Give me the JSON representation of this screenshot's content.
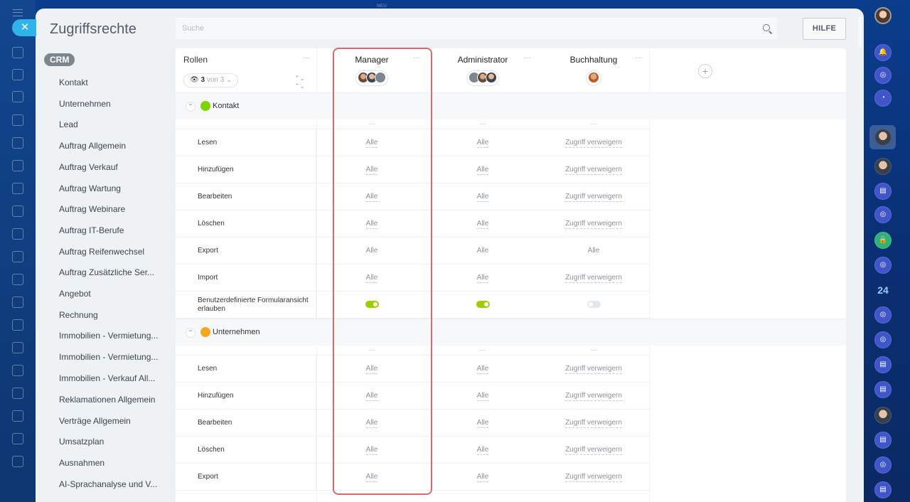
{
  "top_badge": "NEU",
  "close_icon": "close-icon",
  "title": "Zugriffsrechte",
  "search": {
    "placeholder": "Suche"
  },
  "help_label": "HILFE",
  "nav": {
    "crm_badge": "CRM",
    "items": [
      "Kontakt",
      "Unternehmen",
      "Lead",
      "Auftrag Allgemein",
      "Auftrag Verkauf",
      "Auftrag Wartung",
      "Auftrag Webinare",
      "Auftrag IT-Berufe",
      "Auftrag Reifenwechsel",
      "Auftrag Zusätzliche Ser...",
      "Angebot",
      "Rechnung",
      "Immobilien - Vermietung...",
      "Immobilien - Vermietung...",
      "Immobilien - Verkauf All...",
      "Reklamationen Allgemein",
      "Verträge Allgemein",
      "Umsatzplan",
      "Ausnahmen",
      "AI-Sprachanalyse und V..."
    ]
  },
  "table": {
    "rollen_label": "Rollen",
    "filter": {
      "count": "3",
      "of_text": "von 3"
    },
    "roles": [
      "Manager",
      "Administrator",
      "Buchhaltung"
    ],
    "dots": "···",
    "sections": [
      {
        "label": "Kontakt",
        "icon": "contact-icon",
        "icon_color": "#7bd500",
        "rows": [
          {
            "label": "Lesen",
            "values": [
              "Alle",
              "Alle",
              "Zugriff verweigern"
            ]
          },
          {
            "label": "Hinzufügen",
            "values": [
              "Alle",
              "Alle",
              "Zugriff verweigern"
            ]
          },
          {
            "label": "Bearbeiten",
            "values": [
              "Alle",
              "Alle",
              "Zugriff verweigern"
            ]
          },
          {
            "label": "Löschen",
            "values": [
              "Alle",
              "Alle",
              "Zugriff verweigern"
            ]
          },
          {
            "label": "Export",
            "values": [
              "Alle",
              "Alle",
              "Alle"
            ]
          },
          {
            "label": "Import",
            "values": [
              "Alle",
              "Alle",
              "Zugriff verweigern"
            ]
          },
          {
            "label": "Benutzerdefinierte Formularansicht erlauben",
            "toggles": [
              true,
              true,
              false
            ]
          }
        ]
      },
      {
        "label": "Unternehmen",
        "icon": "company-icon",
        "icon_color": "#f5a623",
        "rows": [
          {
            "label": "Lesen",
            "values": [
              "Alle",
              "Alle",
              "Zugriff verweigern"
            ]
          },
          {
            "label": "Hinzufügen",
            "values": [
              "Alle",
              "Alle",
              "Zugriff verweigern"
            ]
          },
          {
            "label": "Bearbeiten",
            "values": [
              "Alle",
              "Alle",
              "Zugriff verweigern"
            ]
          },
          {
            "label": "Löschen",
            "values": [
              "Alle",
              "Alle",
              "Zugriff verweigern"
            ]
          },
          {
            "label": "Export",
            "values": [
              "Alle",
              "Alle",
              "Zugriff verweigern"
            ]
          }
        ]
      }
    ]
  },
  "right_rail": {
    "badge_24": "24"
  },
  "colors": {
    "highlight": "#e06767",
    "toggle_on": "#9dcf00",
    "close_button": "#2fb4ea"
  }
}
